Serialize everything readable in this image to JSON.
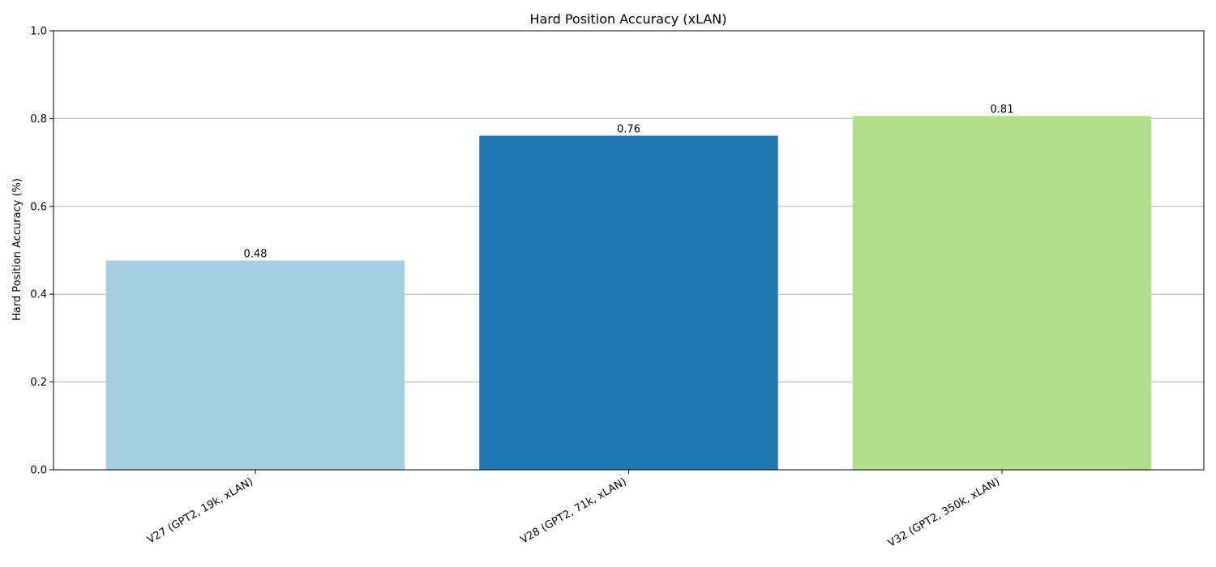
{
  "chart_data": {
    "type": "bar",
    "title": "Hard Position Accuracy (xLAN)",
    "xlabel": "",
    "ylabel": "Hard Position Accuracy (%)",
    "ylim": [
      0,
      1.0
    ],
    "yticks": [
      0.0,
      0.2,
      0.4,
      0.6,
      0.8,
      1.0
    ],
    "ytick_labels": [
      "0.0",
      "0.2",
      "0.4",
      "0.6",
      "0.8",
      "1.0"
    ],
    "grid": "horizontal",
    "categories": [
      "V27 (GPT2, 19k, xLAN)",
      "V28 (GPT2, 71k, xLAN)",
      "V32 (GPT2, 350k, xLAN)"
    ],
    "values": [
      0.477,
      0.761,
      0.806
    ],
    "value_labels": [
      "0.48",
      "0.76",
      "0.81"
    ],
    "colors": [
      "#a6cee3",
      "#1f78b4",
      "#b2df8a"
    ]
  }
}
